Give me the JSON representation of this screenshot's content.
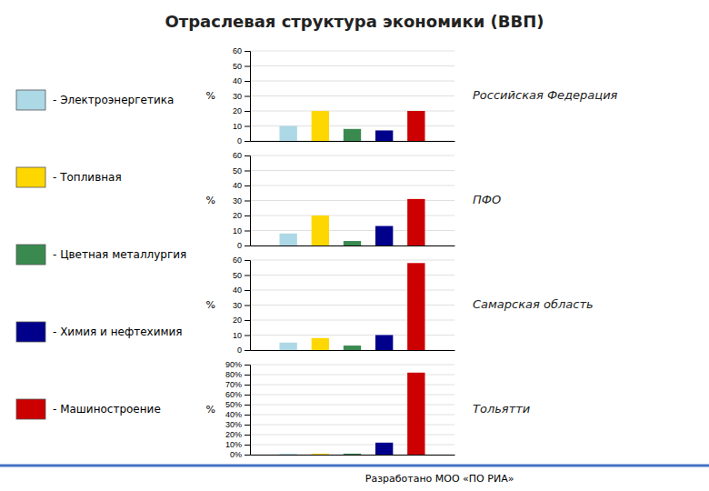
{
  "title": "Отраслевая структура экономики (ВВП)",
  "annotations": [
    "Разработано МОО «ПО РИА»"
  ],
  "chart_data": [
    {
      "type": "bar",
      "title": "Российская Федерация",
      "ylabel": "%",
      "categories": [
        null
      ],
      "series": [
        {
          "name": "- Электроэнергетика",
          "color": "#ADD8E6",
          "values": [
            10
          ]
        },
        {
          "name": "- Топливная",
          "color": "#FFD700",
          "values": [
            20
          ]
        },
        {
          "name": "- Цветная металлургия",
          "color": "#3A8A50",
          "values": [
            8
          ]
        },
        {
          "name": "- Химия и нефтехимия",
          "color": "#00008B",
          "values": [
            7
          ]
        },
        {
          "name": "- Машиностроение",
          "color": "#CC0000",
          "values": [
            20
          ]
        }
      ],
      "ylim": [
        0,
        60
      ],
      "yticks": [
        0,
        10,
        20,
        30,
        40,
        50,
        60
      ],
      "grid": true,
      "legend": "left",
      "tick_labels": "y"
    },
    {
      "type": "bar",
      "title": "ПФО",
      "ylabel": "%",
      "categories": [
        null
      ],
      "series": [
        {
          "name": "- Электроэнергетика",
          "color": "#ADD8E6",
          "values": [
            8
          ]
        },
        {
          "name": "- Топливная",
          "color": "#FFD700",
          "values": [
            20
          ]
        },
        {
          "name": "- Цветная металлургия",
          "color": "#3A8A50",
          "values": [
            3
          ]
        },
        {
          "name": "- Химия и нефтехимия",
          "color": "#00008B",
          "values": [
            13
          ]
        },
        {
          "name": "- Машиностроение",
          "color": "#CC0000",
          "values": [
            31
          ]
        }
      ],
      "ylim": [
        0,
        60
      ],
      "yticks": [
        0,
        10,
        20,
        30,
        40,
        50,
        60
      ],
      "grid": true,
      "tick_labels": "y"
    },
    {
      "type": "bar",
      "title": "Самарская область",
      "ylabel": "%",
      "categories": [
        null
      ],
      "series": [
        {
          "name": "- Электроэнергетика",
          "color": "#ADD8E6",
          "values": [
            5
          ]
        },
        {
          "name": "- Топливная",
          "color": "#FFD700",
          "values": [
            8
          ]
        },
        {
          "name": "- Цветная металлургия",
          "color": "#3A8A50",
          "values": [
            3
          ]
        },
        {
          "name": "- Химия и нефтехимия",
          "color": "#00008B",
          "values": [
            10
          ]
        },
        {
          "name": "- Машиностроение",
          "color": "#CC0000",
          "values": [
            58
          ]
        }
      ],
      "ylim": [
        0,
        60
      ],
      "yticks": [
        0,
        10,
        20,
        30,
        40,
        50,
        60
      ],
      "grid": true,
      "tick_labels": "y"
    },
    {
      "type": "bar",
      "title": "Тольятти",
      "ylabel": "%",
      "categories": [
        null
      ],
      "series": [
        {
          "name": "- Электроэнергетика",
          "color": "#ADD8E6",
          "values": [
            1
          ]
        },
        {
          "name": "- Топливная",
          "color": "#FFD700",
          "values": [
            1
          ]
        },
        {
          "name": "- Цветная металлургия",
          "color": "#3A8A50",
          "values": [
            1
          ]
        },
        {
          "name": "- Химия и нефтехимия",
          "color": "#00008B",
          "values": [
            12
          ]
        },
        {
          "name": "- Машиностроение",
          "color": "#CC0000",
          "values": [
            82
          ]
        }
      ],
      "ylim": [
        0,
        90
      ],
      "yticks": [
        {
          "value": 0,
          "label": "0%"
        },
        {
          "value": 10,
          "label": "10%"
        },
        {
          "value": 20,
          "label": "20%"
        },
        {
          "value": 30,
          "label": "30%"
        },
        {
          "value": 40,
          "label": "40%"
        },
        {
          "value": 50,
          "label": "50%"
        },
        {
          "value": 60,
          "label": "60%"
        },
        {
          "value": 70,
          "label": "70%"
        },
        {
          "value": 80,
          "label": "80%"
        },
        {
          "value": 90,
          "label": "90%"
        }
      ],
      "grid": true,
      "tick_labels": "y"
    }
  ]
}
